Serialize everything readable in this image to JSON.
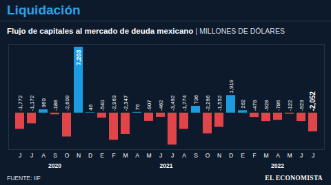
{
  "chart_data": {
    "type": "bar",
    "title": "Liquidación",
    "subtitle": "Flujo de capitales al mercado de deuda mexicano | MILLONES DE DÓLARES",
    "source": "FUENTE: IIF",
    "credit": "EL ECONOMISTA",
    "categories": [
      "J",
      "J",
      "A",
      "S",
      "O",
      "N",
      "D",
      "E",
      "F",
      "M",
      "A",
      "M",
      "J",
      "J",
      "A",
      "S",
      "O",
      "N",
      "D",
      "E",
      "F",
      "M",
      "A",
      "M",
      "J",
      "J"
    ],
    "x_groups": [
      {
        "label": "2020",
        "from": 0,
        "to": 6
      },
      {
        "label": "2021",
        "from": 7,
        "to": 18
      },
      {
        "label": "2022",
        "from": 19,
        "to": 25
      }
    ],
    "values": [
      -1772,
      -1172,
      360,
      -188,
      -2609,
      7203,
      46,
      -540,
      -2963,
      -2347,
      76,
      -907,
      -462,
      -3492,
      -1774,
      736,
      -2266,
      -1552,
      1919,
      262,
      -478,
      -928,
      -786,
      -122,
      -923,
      -2052
    ],
    "value_labels": [
      "-1,772",
      "-1,172",
      "360",
      "-188",
      "-2,609",
      "7,203",
      "46",
      "-540",
      "-2,963",
      "-2,347",
      "76",
      "-907",
      "-462",
      "-3,492",
      "-1,774",
      "736",
      "-2,266",
      "-1,552",
      "1,919",
      "262",
      "-478",
      "-928",
      "-786",
      "-122",
      "-923",
      "-2,052"
    ],
    "colors": [
      "#e0454a",
      "#e0454a",
      "#1b9be0",
      "#e0454a",
      "#e0454a",
      "#1b9be0",
      "#1b9be0",
      "#e0454a",
      "#e0454a",
      "#e0454a",
      "#1b9be0",
      "#e0454a",
      "#e0454a",
      "#e0454a",
      "#e0454a",
      "#1b9be0",
      "#e0454a",
      "#e0454a",
      "#1b9be0",
      "#1b9be0",
      "#e0454a",
      "#e0454a",
      "#e0454a",
      "#e0454a",
      "#e0454a",
      "#e0454a"
    ],
    "ylim": [
      -4000,
      7500
    ],
    "data_labels": true,
    "tick_labels": "x",
    "grid": false
  }
}
